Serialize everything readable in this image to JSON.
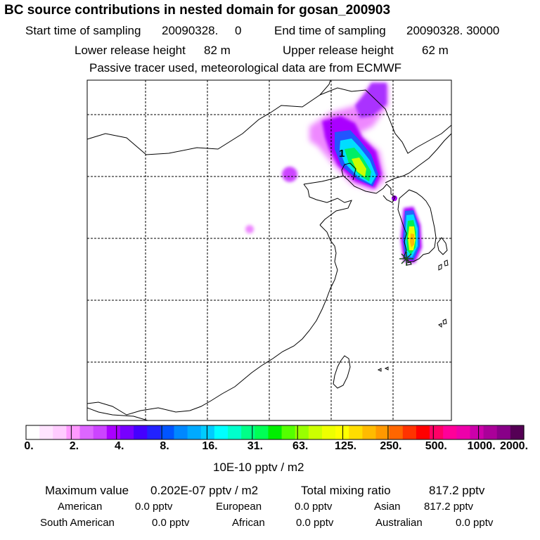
{
  "title": "BC  source contributions in nested domain for gosan_200903",
  "sampling": {
    "start_label": "Start time of sampling",
    "start_value": "20090328.     0",
    "end_label": "End time of sampling",
    "end_value": "20090328. 30000"
  },
  "release": {
    "lower_label": "Lower release height",
    "lower_value": "82 m",
    "upper_label": "Upper release height",
    "upper_value": "62 m"
  },
  "note": "Passive tracer used, meteorological data are from ECMWF",
  "colors": {
    "scale": [
      "#ffffff",
      "#ffe4ff",
      "#ffccff",
      "#ff99ff",
      "#dd66ff",
      "#cc44ff",
      "#aa00ff",
      "#7700ff",
      "#4400ff",
      "#2222ff",
      "#0055ff",
      "#0088ff",
      "#00aaff",
      "#00ccff",
      "#00ffff",
      "#00ffcc",
      "#00ff88",
      "#00ff55",
      "#00ee00",
      "#55ff00",
      "#99ff00",
      "#ccff00",
      "#eeff00",
      "#ffff00",
      "#ffdd00",
      "#ffbb00",
      "#ff9900",
      "#ff6600",
      "#ff3300",
      "#ff0000",
      "#ff0066",
      "#ff0099",
      "#ee00aa",
      "#cc00aa",
      "#aa0099",
      "#880088",
      "#550055"
    ]
  },
  "chart_data": {
    "type": "heatmap",
    "title": "BC  source contributions in nested domain for gosan_200903",
    "colorbar": {
      "tick_labels": [
        "0.",
        "2.",
        "4.",
        "8.",
        "16.",
        "31.",
        "63.",
        "125.",
        "250.",
        "500.",
        "1000.",
        "2000."
      ],
      "unit_label": "10E-10 pptv / m2"
    },
    "marker_label": "1",
    "receptor_marker": "star",
    "grid": true
  },
  "stats": {
    "max_label": "Maximum value",
    "max_value": "0.202E-07 pptv / m2",
    "total_label": "Total mixing ratio",
    "total_value": "817.2 pptv"
  },
  "regions": [
    {
      "name": "American",
      "value": "0.0 pptv"
    },
    {
      "name": "European",
      "value": "0.0 pptv"
    },
    {
      "name": "Asian",
      "value": "817.2 pptv"
    },
    {
      "name": "South American",
      "value": "0.0 pptv"
    },
    {
      "name": "African",
      "value": "0.0 pptv"
    },
    {
      "name": "Australian",
      "value": "0.0 pptv"
    }
  ]
}
